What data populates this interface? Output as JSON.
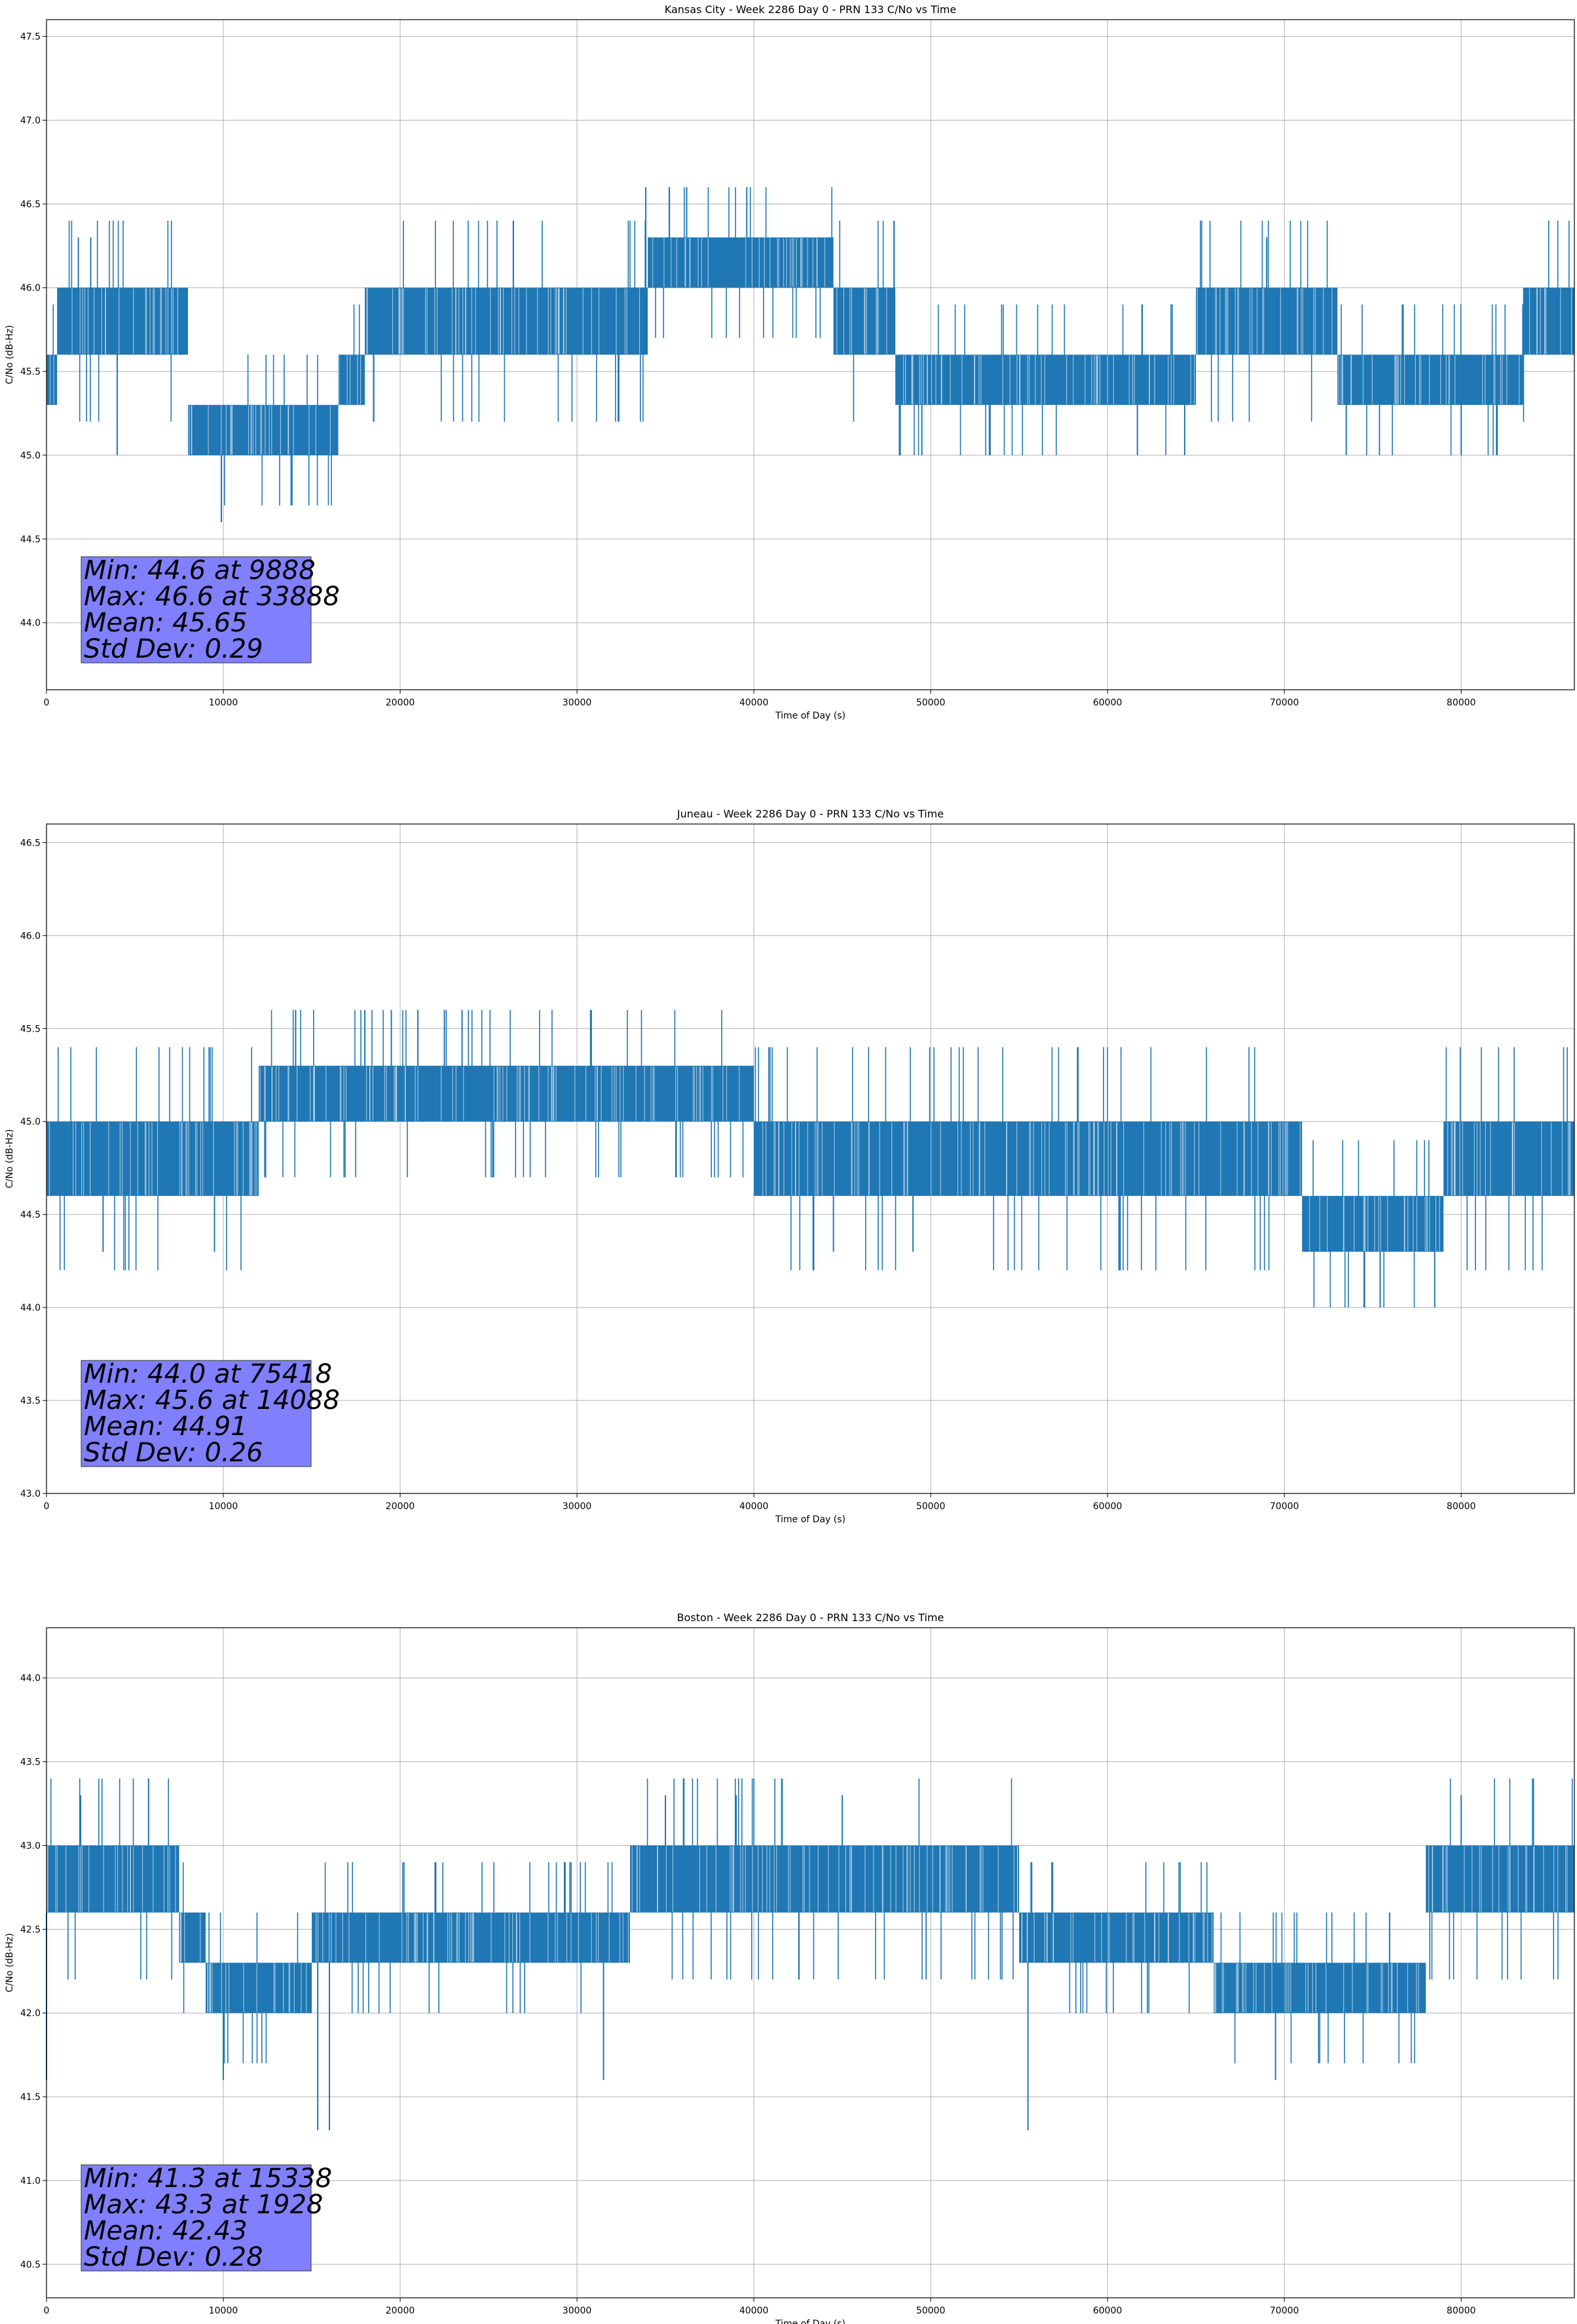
{
  "colors": {
    "series": "#1f77b4",
    "grid": "#b0b0b0",
    "stats_box": "#8080ff"
  },
  "chart_data": [
    {
      "type": "line",
      "title": "Kansas City - Week 2286 Day 0 - PRN 133 C/No vs Time",
      "xlabel": "Time of Day (s)",
      "ylabel": "C/No (dB-Hz)",
      "xlim": [
        0,
        86400
      ],
      "ylim": [
        43.6,
        47.6
      ],
      "xticks": [
        0,
        10000,
        20000,
        30000,
        40000,
        50000,
        60000,
        70000,
        80000
      ],
      "xtick_labels": [
        "0",
        "10000",
        "20000",
        "30000",
        "40000",
        "50000",
        "60000",
        "70000",
        "80000"
      ],
      "yticks": [
        44.0,
        44.5,
        45.0,
        45.5,
        46.0,
        46.5,
        47.0,
        47.5
      ],
      "ytick_labels": [
        "44.0",
        "44.5",
        "45.0",
        "45.5",
        "46.0",
        "46.5",
        "47.0",
        "47.5"
      ],
      "grid": true,
      "segments": [
        {
          "x": [
            0,
            600
          ],
          "band": [
            45.3,
            45.6
          ]
        },
        {
          "x": [
            600,
            8000
          ],
          "band": [
            45.6,
            46.0
          ]
        },
        {
          "x": [
            8000,
            16500
          ],
          "band": [
            45.0,
            45.3
          ]
        },
        {
          "x": [
            16500,
            18000
          ],
          "band": [
            45.3,
            45.6
          ]
        },
        {
          "x": [
            18000,
            34000
          ],
          "band": [
            45.6,
            46.0
          ]
        },
        {
          "x": [
            34000,
            44500
          ],
          "band": [
            46.0,
            46.3
          ]
        },
        {
          "x": [
            44500,
            48000
          ],
          "band": [
            45.6,
            46.0
          ]
        },
        {
          "x": [
            48000,
            65000
          ],
          "band": [
            45.3,
            45.6
          ]
        },
        {
          "x": [
            65000,
            73000
          ],
          "band": [
            45.6,
            46.0
          ]
        },
        {
          "x": [
            73000,
            83500
          ],
          "band": [
            45.3,
            45.6
          ]
        },
        {
          "x": [
            83500,
            86400
          ],
          "band": [
            45.6,
            46.0
          ]
        }
      ],
      "spikes": [
        {
          "x": 9888,
          "y": 44.6
        },
        {
          "x": 33888,
          "y": 46.6
        },
        {
          "x": 36200,
          "y": 46.6
        },
        {
          "x": 39600,
          "y": 46.6
        },
        {
          "x": 69000,
          "y": 46.3
        },
        {
          "x": 1800,
          "y": 46.3
        },
        {
          "x": 2500,
          "y": 46.3
        },
        {
          "x": 4000,
          "y": 45.0
        },
        {
          "x": 49500,
          "y": 45.0
        },
        {
          "x": 80000,
          "y": 45.0
        },
        {
          "x": 82000,
          "y": 45.0
        },
        {
          "x": 73500,
          "y": 45.0
        }
      ],
      "stats": [
        "Min: 44.6 at 9888",
        "Max: 46.6 at 33888",
        "Mean: 45.65",
        "Std Dev: 0.29"
      ]
    },
    {
      "type": "line",
      "title": "Juneau - Week 2286 Day 0 - PRN 133 C/No vs Time",
      "xlabel": "Time of Day (s)",
      "ylabel": "C/No (dB-Hz)",
      "xlim": [
        0,
        86400
      ],
      "ylim": [
        43.0,
        46.6
      ],
      "xticks": [
        0,
        10000,
        20000,
        30000,
        40000,
        50000,
        60000,
        70000,
        80000
      ],
      "xtick_labels": [
        "0",
        "10000",
        "20000",
        "30000",
        "40000",
        "50000",
        "60000",
        "70000",
        "80000"
      ],
      "yticks": [
        43.0,
        43.5,
        44.0,
        44.5,
        45.0,
        45.5,
        46.0,
        46.5
      ],
      "ytick_labels": [
        "43.0",
        "43.5",
        "44.0",
        "44.5",
        "45.0",
        "45.5",
        "46.0",
        "46.5"
      ],
      "grid": true,
      "segments": [
        {
          "x": [
            0,
            12000
          ],
          "band": [
            44.6,
            45.0
          ]
        },
        {
          "x": [
            12000,
            40000
          ],
          "band": [
            45.0,
            45.3
          ]
        },
        {
          "x": [
            40000,
            71000
          ],
          "band": [
            44.6,
            45.0
          ]
        },
        {
          "x": [
            71000,
            79000
          ],
          "band": [
            44.3,
            44.6
          ]
        },
        {
          "x": [
            79000,
            86400
          ],
          "band": [
            44.6,
            45.0
          ]
        }
      ],
      "spikes": [
        {
          "x": 14088,
          "y": 45.6
        },
        {
          "x": 18000,
          "y": 45.6
        },
        {
          "x": 19500,
          "y": 45.6
        },
        {
          "x": 21000,
          "y": 45.6
        },
        {
          "x": 22500,
          "y": 45.6
        },
        {
          "x": 23500,
          "y": 45.6
        },
        {
          "x": 75418,
          "y": 44.0
        },
        {
          "x": 78500,
          "y": 44.0
        },
        {
          "x": 3200,
          "y": 44.3
        },
        {
          "x": 44500,
          "y": 44.3
        },
        {
          "x": 49000,
          "y": 44.3
        },
        {
          "x": 9500,
          "y": 44.3
        }
      ],
      "stats": [
        "Min: 44.0 at 75418",
        "Max: 45.6 at 14088",
        "Mean: 44.91",
        "Std Dev: 0.26"
      ]
    },
    {
      "type": "line",
      "title": "Boston - Week 2286 Day 0 - PRN 133 C/No vs Time",
      "xlabel": "Time of Day (s)",
      "ylabel": "C/No (dB-Hz)",
      "xlim": [
        0,
        86400
      ],
      "ylim": [
        40.3,
        44.3
      ],
      "xticks": [
        0,
        10000,
        20000,
        30000,
        40000,
        50000,
        60000,
        70000,
        80000
      ],
      "xtick_labels": [
        "0",
        "10000",
        "20000",
        "30000",
        "40000",
        "50000",
        "60000",
        "70000",
        "80000"
      ],
      "yticks": [
        40.5,
        41.0,
        41.5,
        42.0,
        42.5,
        43.0,
        43.5,
        44.0
      ],
      "ytick_labels": [
        "40.5",
        "41.0",
        "41.5",
        "42.0",
        "42.5",
        "43.0",
        "43.5",
        "44.0"
      ],
      "grid": true,
      "segments": [
        {
          "x": [
            0,
            7500
          ],
          "band": [
            42.6,
            43.0
          ]
        },
        {
          "x": [
            7500,
            9000
          ],
          "band": [
            42.3,
            42.6
          ]
        },
        {
          "x": [
            9000,
            15000
          ],
          "band": [
            42.0,
            42.3
          ]
        },
        {
          "x": [
            15000,
            22000
          ],
          "band": [
            42.3,
            42.6
          ]
        },
        {
          "x": [
            22000,
            33000
          ],
          "band": [
            42.3,
            42.6
          ]
        },
        {
          "x": [
            33000,
            55000
          ],
          "band": [
            42.6,
            43.0
          ]
        },
        {
          "x": [
            55000,
            66000
          ],
          "band": [
            42.3,
            42.6
          ]
        },
        {
          "x": [
            66000,
            78000
          ],
          "band": [
            42.0,
            42.3
          ]
        },
        {
          "x": [
            78000,
            86400
          ],
          "band": [
            42.6,
            43.0
          ]
        }
      ],
      "spikes": [
        {
          "x": 15338,
          "y": 41.3
        },
        {
          "x": 16000,
          "y": 41.3
        },
        {
          "x": 55500,
          "y": 41.3
        },
        {
          "x": 1928,
          "y": 43.3
        },
        {
          "x": 35000,
          "y": 43.3
        },
        {
          "x": 39000,
          "y": 43.3
        },
        {
          "x": 45000,
          "y": 43.3
        },
        {
          "x": 80000,
          "y": 43.3
        },
        {
          "x": 10000,
          "y": 41.6
        },
        {
          "x": 31500,
          "y": 41.6
        },
        {
          "x": 69500,
          "y": 41.6
        },
        {
          "x": 0,
          "y": 41.6
        }
      ],
      "stats": [
        "Min: 41.3 at 15338",
        "Max: 43.3 at 1928",
        "Mean: 42.43",
        "Std Dev: 0.28"
      ]
    }
  ]
}
